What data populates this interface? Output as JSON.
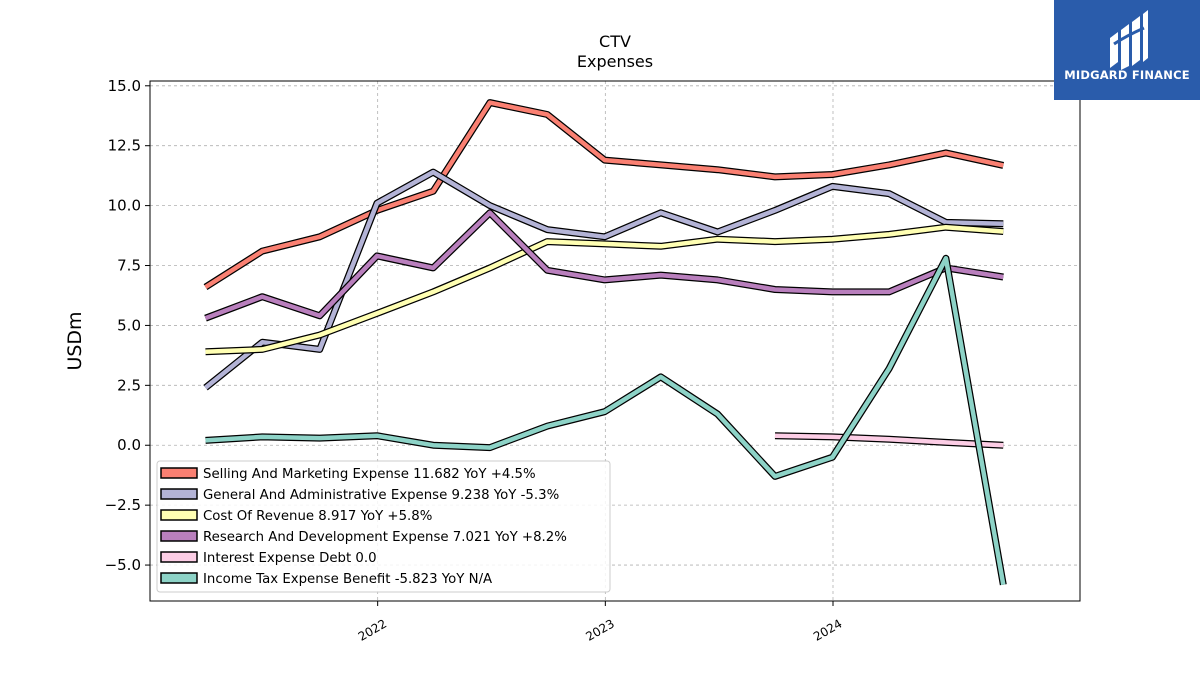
{
  "chart_data": {
    "type": "line",
    "title": "CTV",
    "subtitle": "Expenses",
    "ylabel": "USDm",
    "xlabel": "",
    "ylim": [
      -6.5,
      15.2
    ],
    "yticks": [
      -5.0,
      -2.5,
      0.0,
      2.5,
      5.0,
      7.5,
      10.0,
      12.5,
      15.0
    ],
    "ytick_labels": [
      "−5.0",
      "−2.5",
      "0.0",
      "2.5",
      "5.0",
      "7.5",
      "10.0",
      "12.5",
      "15.0"
    ],
    "xlim": [
      "2021-01-01",
      "2025-01-31"
    ],
    "xticks": [
      "2022-01-01",
      "2023-01-01",
      "2024-01-01"
    ],
    "xtick_labels": [
      "2022",
      "2023",
      "2024"
    ],
    "grid": true,
    "legend_position": "lower-left",
    "x": [
      "2021-03-31",
      "2021-06-30",
      "2021-09-30",
      "2021-12-31",
      "2022-03-31",
      "2022-06-30",
      "2022-09-30",
      "2022-12-31",
      "2023-03-31",
      "2023-06-30",
      "2023-09-30",
      "2023-12-31",
      "2024-03-31",
      "2024-06-30",
      "2024-09-30"
    ],
    "series": [
      {
        "name": "Selling And Marketing Expense",
        "legend": "Selling And Marketing Expense  11.682 YoY +4.5%",
        "color": "#fa8072",
        "values": [
          6.6,
          8.1,
          8.7,
          9.8,
          10.6,
          14.3,
          13.8,
          11.9,
          11.7,
          11.5,
          11.2,
          11.3,
          11.7,
          12.2,
          11.68
        ]
      },
      {
        "name": "General And Administrative Expense",
        "legend": "General And Administrative Expense  9.238 YoY -5.3%",
        "color": "#b3b3d6",
        "values": [
          2.4,
          4.3,
          4.0,
          10.1,
          11.4,
          10.0,
          9.0,
          8.7,
          9.7,
          8.9,
          9.8,
          10.8,
          10.5,
          9.3,
          9.24
        ]
      },
      {
        "name": "Cost Of Revenue",
        "legend": "Cost Of Revenue  8.917 YoY +5.8%",
        "color": "#ffffb3",
        "values": [
          3.9,
          4.0,
          4.6,
          5.5,
          6.4,
          7.4,
          8.5,
          8.4,
          8.3,
          8.6,
          8.5,
          8.6,
          8.8,
          9.1,
          8.92
        ]
      },
      {
        "name": "Research And Development Expense",
        "legend": "Research And Development Expense  7.021 YoY +8.2%",
        "color": "#b97fbd",
        "values": [
          5.3,
          6.2,
          5.4,
          7.9,
          7.4,
          9.7,
          7.3,
          6.9,
          7.1,
          6.9,
          6.5,
          6.4,
          6.4,
          7.4,
          7.02
        ]
      },
      {
        "name": "Interest Expense Debt",
        "legend": "Interest Expense Debt  0.0",
        "color": "#fccde5",
        "values": [
          null,
          null,
          null,
          null,
          null,
          null,
          null,
          null,
          null,
          null,
          0.4,
          0.35,
          0.25,
          0.12,
          0.0
        ]
      },
      {
        "name": "Income Tax Expense Benefit",
        "legend": "Income Tax Expense Benefit  -5.823 YoY N/A",
        "color": "#8dd3c7",
        "values": [
          0.2,
          0.35,
          0.3,
          0.4,
          0.0,
          -0.1,
          0.8,
          1.4,
          2.85,
          1.3,
          -1.3,
          -0.5,
          3.2,
          7.8,
          -5.82
        ]
      }
    ]
  },
  "logo": {
    "text": "MIDGARD FINANCE"
  }
}
